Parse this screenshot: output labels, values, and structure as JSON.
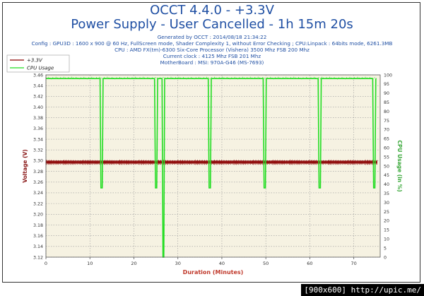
{
  "header": {
    "title": "OCCT 4.4.0 - +3.3V",
    "subtitle": "Power Supply - User Cancelled - 1h 15m 20s",
    "info_lines": [
      "Generated by OCCT : 2014/08/18 21:34:22",
      "Config : GPU3D : 1600 x 900 @ 60 Hz, FullScreen mode, Shader Complexity 1, without Error Checking ; CPU:Linpack : 64bits mode, 6261.3MB",
      "CPU : AMD FX(tm)-6300 Six-Core Processor (Vishera) 3500 Mhz FSB 200 Mhz",
      "Current clock : 4125 Mhz FSB 201 Mhz",
      "MotherBoard : MSI: 970A-G46 (MS-7693)"
    ]
  },
  "watermark": "[900x600] http://upic.me/",
  "colors": {
    "title": "#1f4fa3",
    "voltage": "#8b0000",
    "cpu": "#22dd22",
    "plot_bg": "#f6f2e2",
    "axis_title": "#c0392b"
  },
  "chart_data": {
    "type": "line",
    "xlabel": "Duration (Minutes)",
    "ylabel": "Voltage (V)",
    "y2label": "CPU Usage (in %)",
    "xlim": [
      0,
      76
    ],
    "ylim": [
      3.12,
      3.46
    ],
    "y2lim": [
      0,
      100
    ],
    "xticks": [
      0,
      10,
      20,
      30,
      40,
      50,
      60,
      70
    ],
    "yticks": [
      "3.12",
      "3.14",
      "3.16",
      "3.18",
      "3.20",
      "3.22",
      "3.24",
      "3.26",
      "3.28",
      "3.30",
      "3.32",
      "3.34",
      "3.36",
      "3.38",
      "3.40",
      "3.42",
      "3.44",
      "3.46"
    ],
    "y2ticks": [
      "0",
      "5",
      "10",
      "15",
      "20",
      "25",
      "30",
      "35",
      "40",
      "45",
      "50",
      "55",
      "60",
      "65",
      "70",
      "75",
      "80",
      "85",
      "90",
      "95",
      "100"
    ],
    "grid": true,
    "legend_position": "top-left",
    "series": [
      {
        "name": "+3.3V",
        "axis": "left",
        "style": "band",
        "values": [
          3.295,
          3.3
        ],
        "range": [
          0,
          75.3
        ]
      },
      {
        "name": "CPU Usage",
        "axis": "right",
        "x": [
          0,
          12.3,
          12.5,
          12.8,
          13.0,
          24.7,
          24.9,
          25.2,
          25.4,
          26.4,
          26.6,
          26.8,
          27.0,
          36.9,
          37.1,
          37.4,
          37.6,
          49.4,
          49.6,
          49.9,
          50.1,
          61.9,
          62.1,
          62.4,
          62.6,
          74.3,
          74.5,
          74.8,
          75.0
        ],
        "y": [
          98,
          98,
          38,
          38,
          98,
          98,
          38,
          38,
          98,
          98,
          0,
          0,
          98,
          98,
          38,
          38,
          98,
          98,
          38,
          38,
          98,
          98,
          38,
          38,
          98,
          98,
          38,
          38,
          98
        ]
      }
    ]
  }
}
